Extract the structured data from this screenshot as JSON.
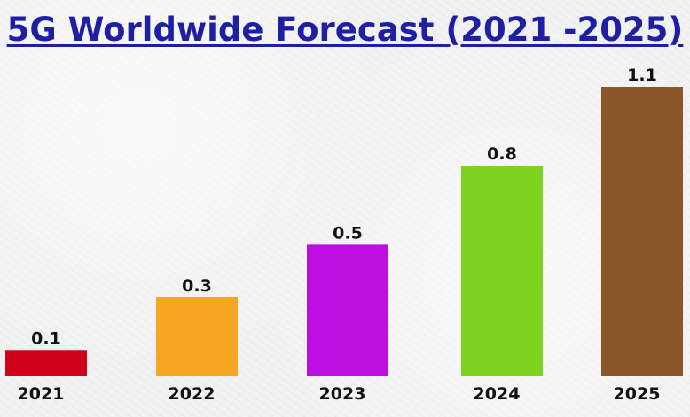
{
  "title": "5G Worldwide Forecast (2021 -2025)",
  "chart_data": {
    "type": "bar",
    "title": "5G Worldwide Forecast (2021 -2025)",
    "xlabel": "",
    "ylabel": "",
    "categories": [
      "2021",
      "2022",
      "2023",
      "2024",
      "2025"
    ],
    "values": [
      0.1,
      0.3,
      0.5,
      0.8,
      1.1
    ],
    "value_labels": [
      "0.1",
      "0.3",
      "0.5",
      "0.8",
      "1.1"
    ],
    "colors": [
      "#d0021b",
      "#f5a623",
      "#bd10e0",
      "#7ed321",
      "#8b572a"
    ],
    "ylim": [
      0,
      1.1
    ],
    "grid": false,
    "legend": "none"
  }
}
